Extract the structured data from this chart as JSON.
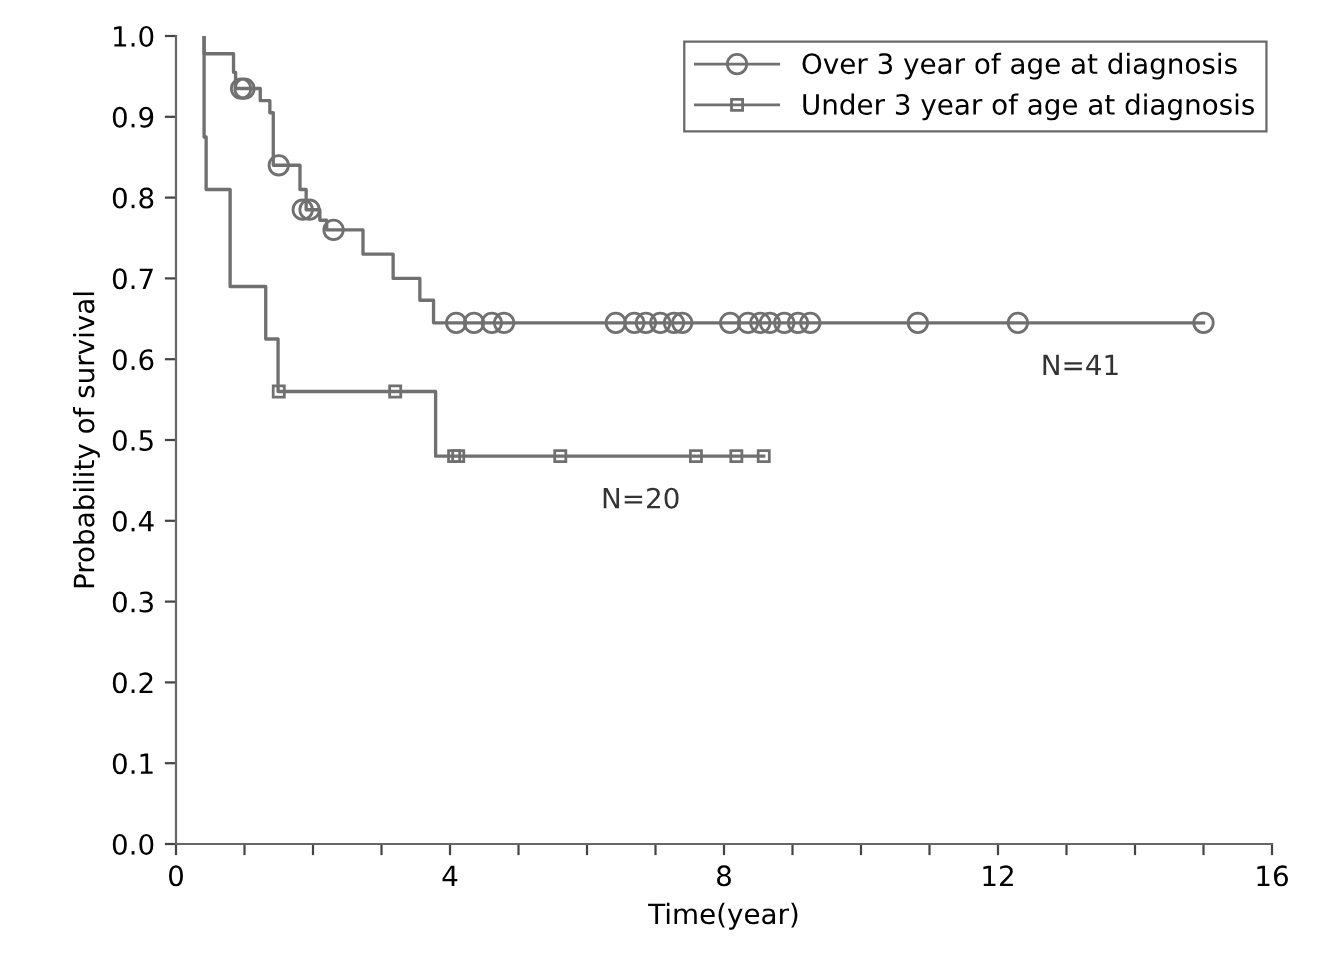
{
  "chart_data": {
    "type": "step",
    "xlabel": "Time(year)",
    "ylabel": "Probability of survival",
    "xlim": [
      0,
      16
    ],
    "ylim": [
      0,
      1.0
    ],
    "xticks": [
      0,
      {
        "value": 1,
        "label": null
      },
      {
        "value": 2,
        "label": null
      },
      {
        "value": 3,
        "label": null
      },
      4,
      {
        "value": 5,
        "label": null
      },
      {
        "value": 6,
        "label": null
      },
      {
        "value": 7,
        "label": null
      },
      8,
      {
        "value": 9,
        "label": null
      },
      {
        "value": 10,
        "label": null
      },
      {
        "value": 11,
        "label": null
      },
      12,
      {
        "value": 13,
        "label": null
      },
      {
        "value": 14,
        "label": null
      },
      {
        "value": 15,
        "label": null
      },
      16
    ],
    "yticks": [
      {
        "value": 0,
        "label": "0.0"
      },
      {
        "value": 0.1,
        "label": "0.1"
      },
      {
        "value": 0.2,
        "label": "0.2"
      },
      {
        "value": 0.3,
        "label": "0.3"
      },
      {
        "value": 0.4,
        "label": "0.4"
      },
      {
        "value": 0.5,
        "label": "0.5"
      },
      {
        "value": 0.6,
        "label": "0.6"
      },
      {
        "value": 0.7,
        "label": "0.7"
      },
      {
        "value": 0.8,
        "label": "0.8"
      },
      {
        "value": 0.9,
        "label": "0.9"
      },
      {
        "value": 1.0,
        "label": "1.0"
      }
    ],
    "grid": false,
    "legend": "top right",
    "series": [
      {
        "color": "#707070",
        "x": [
          0.41,
          0.41,
          0.84,
          0.87,
          1.23,
          1.37,
          1.42,
          1.81,
          1.9,
          2.1,
          2.2,
          2.73,
          3.17,
          3.56,
          3.76,
          15.0
        ],
        "values": [
          1.0,
          0.978,
          0.955,
          0.935,
          0.92,
          0.905,
          0.84,
          0.81,
          0.785,
          0.772,
          0.76,
          0.73,
          0.7,
          0.673,
          0.645,
          0.645
        ]
      },
      {
        "type": "scatter",
        "name": "Over 3 year of age at diagnosis",
        "marker": "circle",
        "color": "#707070",
        "x": [
          0.95,
          1.0,
          1.5,
          1.85,
          1.95,
          2.3,
          4.09,
          4.35,
          4.61,
          4.79,
          6.42,
          6.69,
          6.86,
          7.07,
          7.27,
          7.39,
          8.09,
          8.35,
          8.53,
          8.67,
          8.88,
          9.08,
          9.26,
          10.83,
          12.29,
          15.0
        ],
        "values": [
          0.935,
          0.935,
          0.84,
          0.785,
          0.785,
          0.76,
          0.645,
          0.645,
          0.645,
          0.645,
          0.645,
          0.645,
          0.645,
          0.645,
          0.645,
          0.645,
          0.645,
          0.645,
          0.645,
          0.645,
          0.645,
          0.645,
          0.645,
          0.645,
          0.645,
          0.645
        ]
      },
      {
        "color": "#707070",
        "x": [
          0.41,
          0.41,
          0.44,
          0.79,
          1.31,
          1.49,
          3.79,
          8.58
        ],
        "values": [
          1.0,
          0.875,
          0.81,
          0.69,
          0.625,
          0.56,
          0.48,
          0.48
        ]
      },
      {
        "type": "scatter",
        "name": "Under 3 year of age at diagnosis",
        "marker": "square",
        "color": "#707070",
        "x": [
          1.5,
          3.2,
          4.06,
          4.12,
          5.61,
          7.59,
          8.18,
          8.58
        ],
        "values": [
          0.56,
          0.56,
          0.48,
          0.48,
          0.48,
          0.48,
          0.48,
          0.48
        ]
      }
    ],
    "annotations": [
      "N=41",
      "N=20"
    ]
  }
}
